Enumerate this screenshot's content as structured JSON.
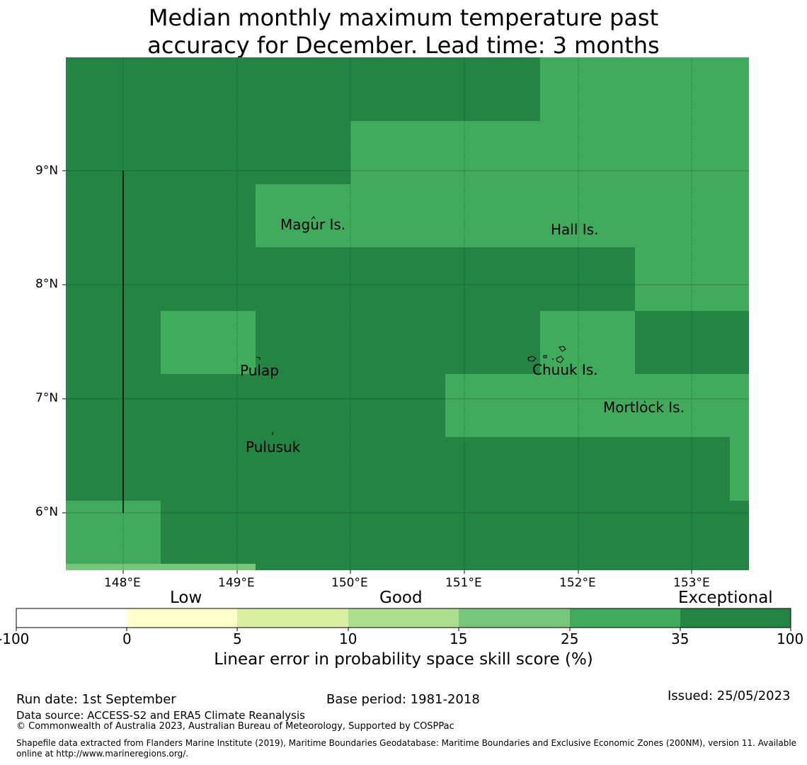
{
  "title": {
    "line1": "Median monthly maximum temperature past",
    "line2": "accuracy for December. Lead time: 3 months"
  },
  "map": {
    "lon_ticks": [
      "148°E",
      "149°E",
      "150°E",
      "151°E",
      "152°E",
      "153°E"
    ],
    "lat_ticks": [
      "9°N",
      "8°N",
      "7°N",
      "6°N"
    ],
    "place_labels": [
      "Magur Is.",
      "Hall Is.",
      "Pulap",
      "Chuuk Is.",
      "Mortlock Is.",
      "Pulusuk"
    ],
    "colors": {
      "exceptional": "#238443",
      "good_25_35": "#41ab5d",
      "good_15_25": "#78c679"
    }
  },
  "colorbar": {
    "category_labels": [
      "Low",
      "Good",
      "Exceptional"
    ],
    "tick_labels": [
      "-100",
      "0",
      "5",
      "10",
      "15",
      "25",
      "35",
      "100"
    ],
    "colors": [
      "#ffffff",
      "#ffffcc",
      "#d9f0a3",
      "#addd8e",
      "#78c679",
      "#41ab5d",
      "#238443"
    ],
    "label": "Linear error in probability space skill score (%)"
  },
  "footer": {
    "run_date": "Run date: 1st September",
    "base_period": "Base period: 1981-2018",
    "issued": "Issued: 25/05/2023",
    "data_source": "Data source: ACCESS-S2 and ERA5 Climate Reanalysis",
    "copyright": "© Commonwealth of Australia 2023, Australian Bureau of Meteorology, Supported by COSPPac",
    "shapefile_line1": "Shapefile data extracted from Flanders Marine Institute (2019), Maritime Boundaries Geodatabase: Maritime Boundaries and Exclusive Economic Zones (200NM), version 11. Available",
    "shapefile_line2": "online at http://www.marineregions.org/."
  }
}
